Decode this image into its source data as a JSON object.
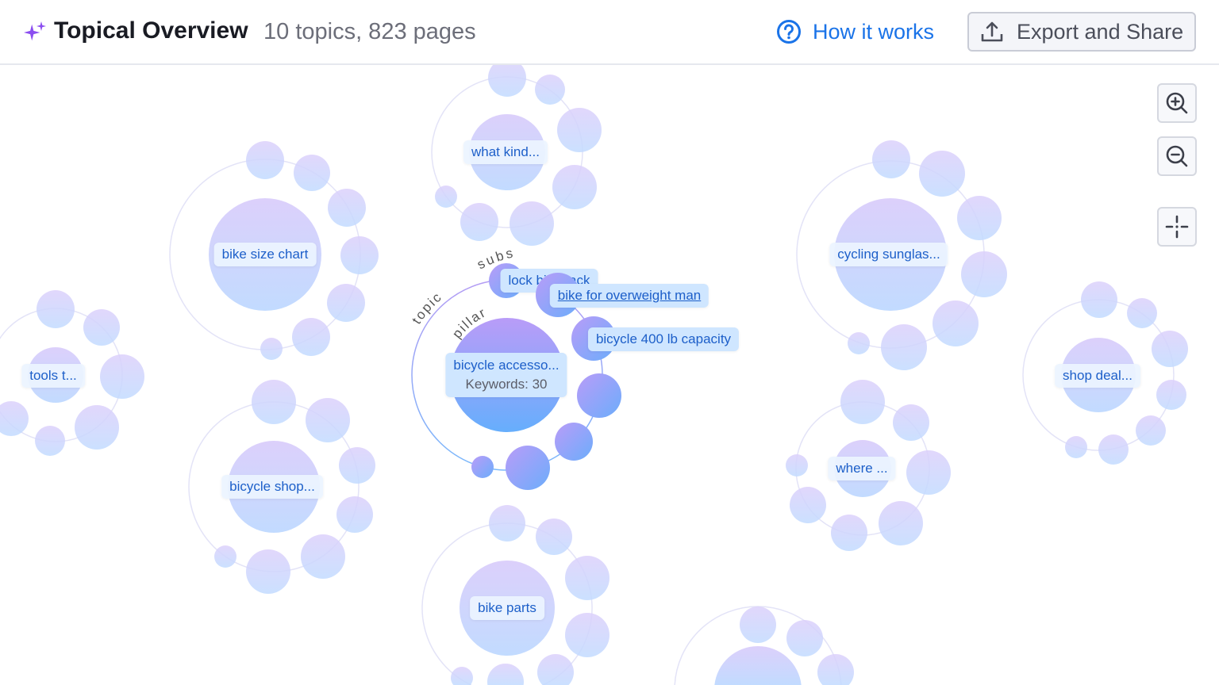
{
  "header": {
    "title": "Topical Overview",
    "subtitle": "10 topics, 823 pages",
    "how_it_works": "How it works",
    "export_share": "Export and Share",
    "icons": [
      "sparkle-icon",
      "help-circle-icon",
      "upload-icon"
    ]
  },
  "controls": {
    "icons": [
      "zoom-in-icon",
      "zoom-out-icon",
      "recenter-icon"
    ]
  },
  "colors": {
    "accent": "#1a73e8",
    "label_text": "#1d5fc9",
    "active_top": "#b99cf8",
    "active_bottom": "#66aefc",
    "inactive_top": "#dcd0fb",
    "inactive_bottom": "#c2dbff"
  },
  "topics": [
    {
      "label": "what kind..."
    },
    {
      "label": "bike size chart"
    },
    {
      "label": "cycling sunglas..."
    },
    {
      "label": "tools t..."
    },
    {
      "label": "shop deal..."
    },
    {
      "label": "bicycle shop..."
    },
    {
      "label": "where ..."
    },
    {
      "label": "bike parts"
    }
  ],
  "active_topic": {
    "label": "bicycle accesso...",
    "keywords": "Keywords: 30",
    "ring_labels": {
      "topic": "topic",
      "pillar": "pillar",
      "subs": "subs"
    },
    "subtopics": [
      {
        "label": "lock bike rack"
      },
      {
        "label": "bike for overweight man"
      },
      {
        "label": "bicycle 400 lb capacity"
      }
    ]
  }
}
